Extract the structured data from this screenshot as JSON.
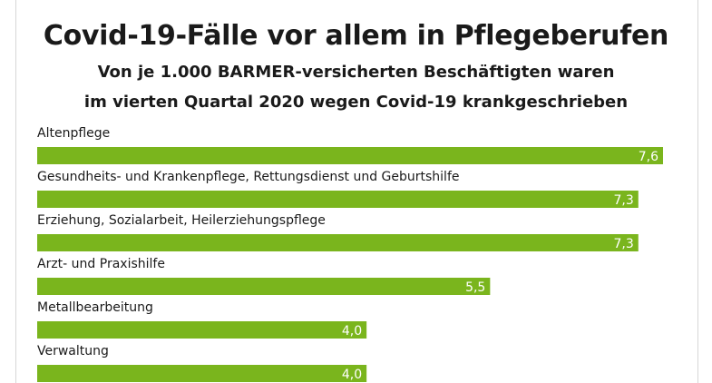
{
  "title": "Covid-19-Fälle vor allem in Pflegeberufen",
  "subtitle_line1": "Von je 1.000 BARMER-versicherten Beschäftigten waren",
  "subtitle_line2": "im vierten Quartal 2020 wegen Covid-19 krankgeschrieben",
  "colors": {
    "bar": "#7ab51d",
    "text": "#1a1a1a",
    "value_text": "#ffffff"
  },
  "chart_data": {
    "type": "bar",
    "orientation": "horizontal",
    "title": "Covid-19-Fälle vor allem in Pflegeberufen",
    "subtitle": "Von je 1.000 BARMER-versicherten Beschäftigten waren im vierten Quartal 2020 wegen Covid-19 krankgeschrieben",
    "categories": [
      "Altenpflege",
      "Gesundheits- und Krankenpflege, Rettungsdienst und Geburtshilfe",
      "Erziehung, Sozialarbeit, Heilerziehungspflege",
      "Arzt- und Praxishilfe",
      "Metallbearbeitung",
      "Verwaltung"
    ],
    "values": [
      7.6,
      7.3,
      7.3,
      5.5,
      4.0,
      4.0
    ],
    "value_labels": [
      "7,6",
      "7,3",
      "7,3",
      "5,5",
      "4,0",
      "4,0"
    ],
    "xlim": [
      0,
      7.6
    ],
    "xlabel": "",
    "ylabel": "",
    "grid": false,
    "legend": "none"
  }
}
